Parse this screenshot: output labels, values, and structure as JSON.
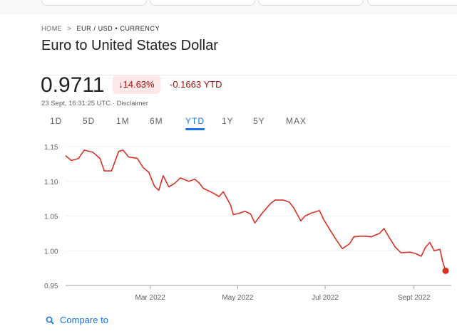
{
  "breadcrumb": {
    "home": "HOME",
    "separator": ">",
    "current": "EUR / USD • CURRENCY"
  },
  "title": "Euro to United States Dollar",
  "quote": {
    "price": "0.9711",
    "change_pct": "↓14.63%",
    "change_abs": "-0.1663 YTD",
    "timestamp": "23 Sept, 16:31:25 UTC · ",
    "disclaimer": "Disclaimer"
  },
  "tabs": [
    {
      "label": "1D"
    },
    {
      "label": "5D"
    },
    {
      "label": "1M"
    },
    {
      "label": "6M"
    },
    {
      "label": "YTD",
      "active": true
    },
    {
      "label": "1Y"
    },
    {
      "label": "5Y"
    },
    {
      "label": "MAX"
    }
  ],
  "compare": {
    "label": "Compare to",
    "icon": "search-icon"
  },
  "colors": {
    "line": "#d93025",
    "accent": "#1a73e8",
    "negative": "#a50e0e"
  },
  "chart_data": {
    "type": "area",
    "xlim": [
      "2022-01-01",
      "2022-09-23"
    ],
    "ylim": [
      0.95,
      1.15
    ],
    "yticks": [
      "1.15",
      "1.10",
      "1.05",
      "1.00",
      "0.95"
    ],
    "xticks": [
      {
        "date": "2022-03-01",
        "label": "Mar 2022"
      },
      {
        "date": "2022-05-01",
        "label": "May 2022"
      },
      {
        "date": "2022-07-01",
        "label": "Jul 2022"
      },
      {
        "date": "2022-09-01",
        "label": "Sept 2022"
      }
    ],
    "grid": true,
    "points": [
      [
        "2022-01-01",
        1.137
      ],
      [
        "2022-01-05",
        1.13
      ],
      [
        "2022-01-10",
        1.133
      ],
      [
        "2022-01-14",
        1.145
      ],
      [
        "2022-01-20",
        1.142
      ],
      [
        "2022-01-25",
        1.133
      ],
      [
        "2022-01-28",
        1.115
      ],
      [
        "2022-02-02",
        1.115
      ],
      [
        "2022-02-07",
        1.143
      ],
      [
        "2022-02-10",
        1.145
      ],
      [
        "2022-02-14",
        1.135
      ],
      [
        "2022-02-20",
        1.133
      ],
      [
        "2022-02-24",
        1.12
      ],
      [
        "2022-02-28",
        1.113
      ],
      [
        "2022-03-04",
        1.093
      ],
      [
        "2022-03-07",
        1.087
      ],
      [
        "2022-03-10",
        1.108
      ],
      [
        "2022-03-14",
        1.092
      ],
      [
        "2022-03-18",
        1.097
      ],
      [
        "2022-03-22",
        1.105
      ],
      [
        "2022-03-28",
        1.1
      ],
      [
        "2022-04-01",
        1.103
      ],
      [
        "2022-04-04",
        1.098
      ],
      [
        "2022-04-07",
        1.09
      ],
      [
        "2022-04-14",
        1.083
      ],
      [
        "2022-04-18",
        1.078
      ],
      [
        "2022-04-21",
        1.085
      ],
      [
        "2022-04-26",
        1.066
      ],
      [
        "2022-04-28",
        1.052
      ],
      [
        "2022-05-02",
        1.054
      ],
      [
        "2022-05-06",
        1.057
      ],
      [
        "2022-05-10",
        1.053
      ],
      [
        "2022-05-13",
        1.04
      ],
      [
        "2022-05-18",
        1.054
      ],
      [
        "2022-05-24",
        1.068
      ],
      [
        "2022-05-27",
        1.073
      ],
      [
        "2022-06-02",
        1.073
      ],
      [
        "2022-06-06",
        1.07
      ],
      [
        "2022-06-09",
        1.062
      ],
      [
        "2022-06-14",
        1.043
      ],
      [
        "2022-06-17",
        1.05
      ],
      [
        "2022-06-21",
        1.054
      ],
      [
        "2022-06-27",
        1.058
      ],
      [
        "2022-06-30",
        1.045
      ],
      [
        "2022-07-05",
        1.028
      ],
      [
        "2022-07-08",
        1.018
      ],
      [
        "2022-07-13",
        1.003
      ],
      [
        "2022-07-18",
        1.01
      ],
      [
        "2022-07-21",
        1.02
      ],
      [
        "2022-07-26",
        1.021
      ],
      [
        "2022-07-29",
        1.021
      ],
      [
        "2022-08-02",
        1.02
      ],
      [
        "2022-08-08",
        1.025
      ],
      [
        "2022-08-11",
        1.032
      ],
      [
        "2022-08-15",
        1.018
      ],
      [
        "2022-08-19",
        1.005
      ],
      [
        "2022-08-23",
        0.997
      ],
      [
        "2022-08-29",
        0.998
      ],
      [
        "2022-09-02",
        0.996
      ],
      [
        "2022-09-06",
        0.992
      ],
      [
        "2022-09-09",
        1.005
      ],
      [
        "2022-09-12",
        1.012
      ],
      [
        "2022-09-15",
        1.0
      ],
      [
        "2022-09-19",
        1.002
      ],
      [
        "2022-09-21",
        0.984
      ],
      [
        "2022-09-23",
        0.9711
      ]
    ]
  }
}
